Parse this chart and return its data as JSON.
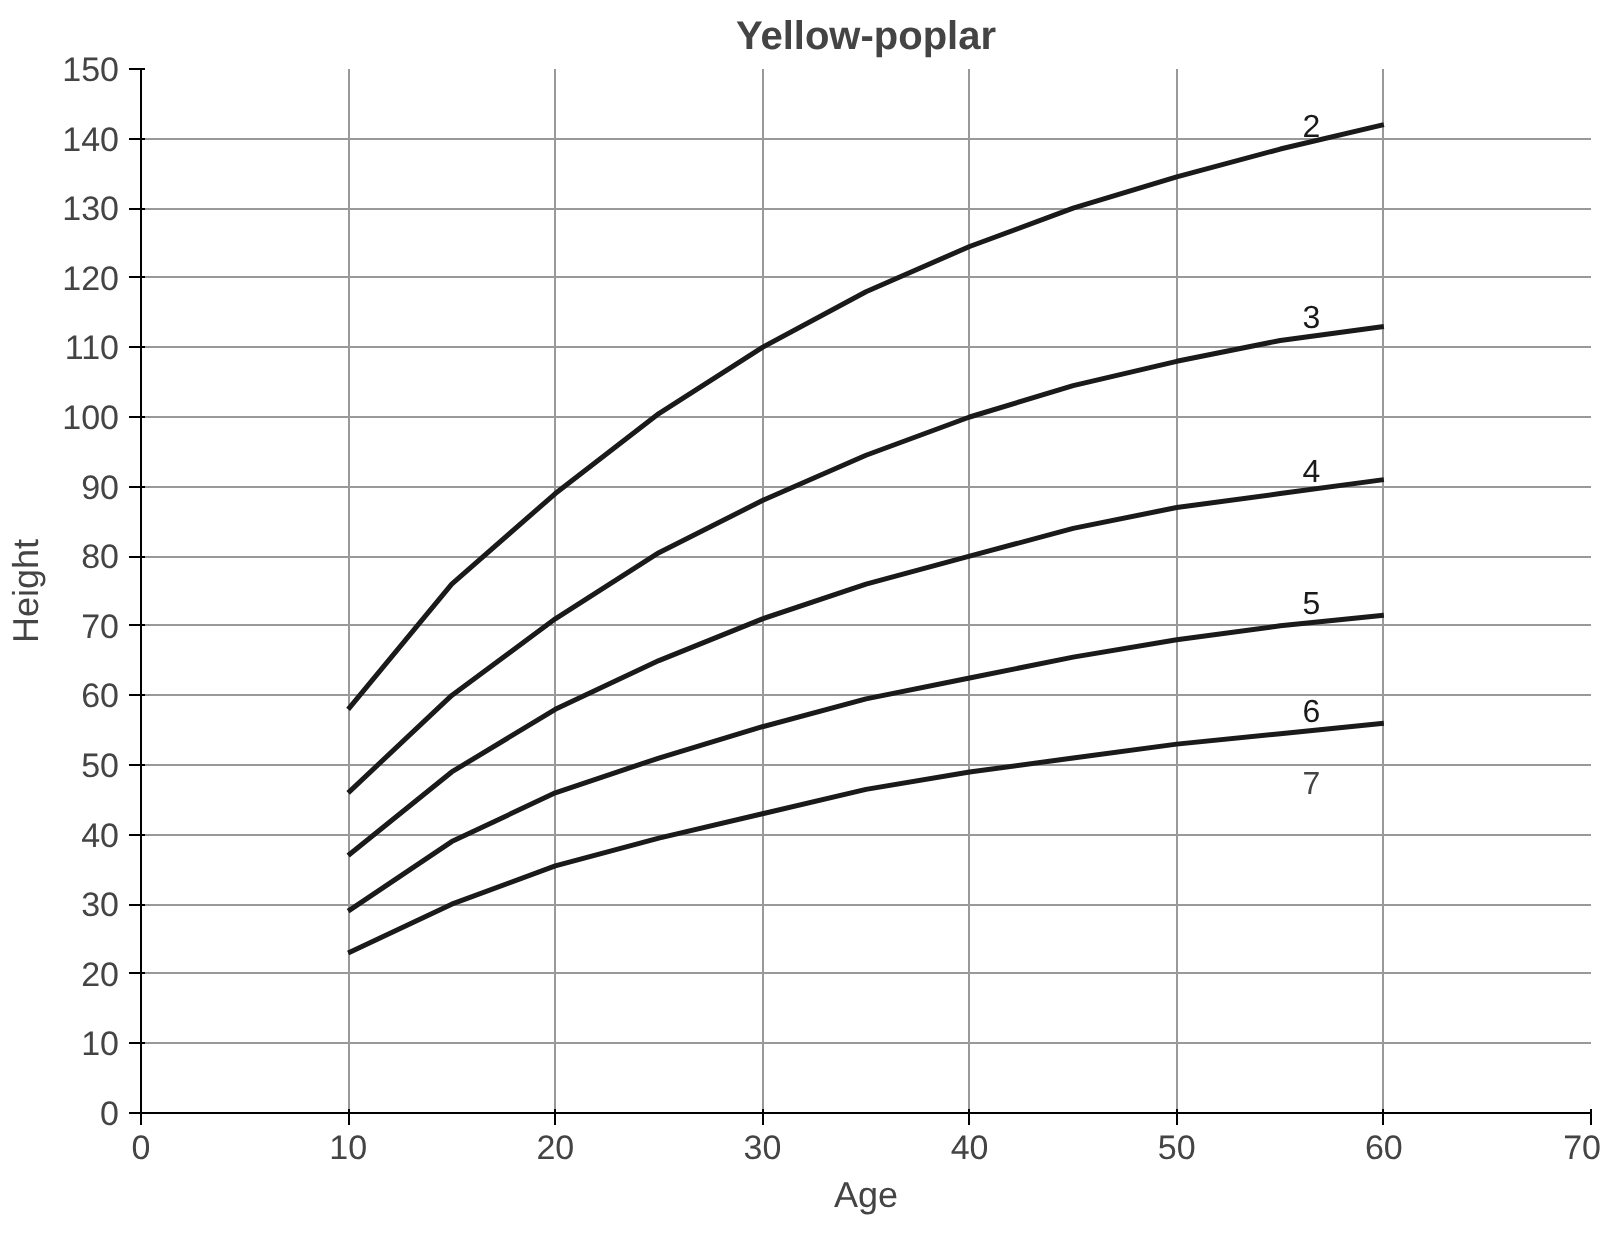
{
  "chart_data": {
    "type": "line",
    "title": "Yellow-poplar",
    "xlabel": "Age",
    "ylabel": "Height",
    "x": [
      10,
      15,
      20,
      25,
      30,
      35,
      40,
      45,
      50,
      55,
      60
    ],
    "series": [
      {
        "name": "2",
        "color": "#1a1a1a",
        "values": [
          58,
          76,
          89,
          100.5,
          110,
          118,
          124.5,
          130,
          134.5,
          138.5,
          142
        ]
      },
      {
        "name": "3",
        "color": "#1a1a1a",
        "values": [
          46,
          60,
          71,
          80.5,
          88,
          94.5,
          100,
          104.5,
          108,
          111,
          113
        ]
      },
      {
        "name": "4",
        "color": "#1a1a1a",
        "values": [
          37,
          49,
          58,
          65,
          71,
          76,
          80,
          84,
          87,
          89,
          91
        ]
      },
      {
        "name": "5",
        "color": "#1a1a1a",
        "values": [
          29,
          39,
          46,
          51,
          55.5,
          59.5,
          62.5,
          65.5,
          68,
          70,
          71.5
        ]
      },
      {
        "name": "6",
        "color": "#1a1a1a",
        "values": [
          23,
          30,
          35.5,
          39.5,
          43,
          46.5,
          49,
          51,
          53,
          54.5,
          56
        ]
      }
    ],
    "annotations": [
      "7"
    ],
    "xlim": [
      0,
      70
    ],
    "xticks": [
      0,
      10,
      20,
      30,
      40,
      50,
      60,
      70
    ],
    "ylim": [
      0,
      150
    ],
    "yticks": [
      0,
      10,
      20,
      30,
      40,
      50,
      60,
      70,
      80,
      90,
      100,
      110,
      120,
      130,
      140,
      150
    ],
    "grid": true,
    "marker": "none",
    "line_style": "solid"
  }
}
